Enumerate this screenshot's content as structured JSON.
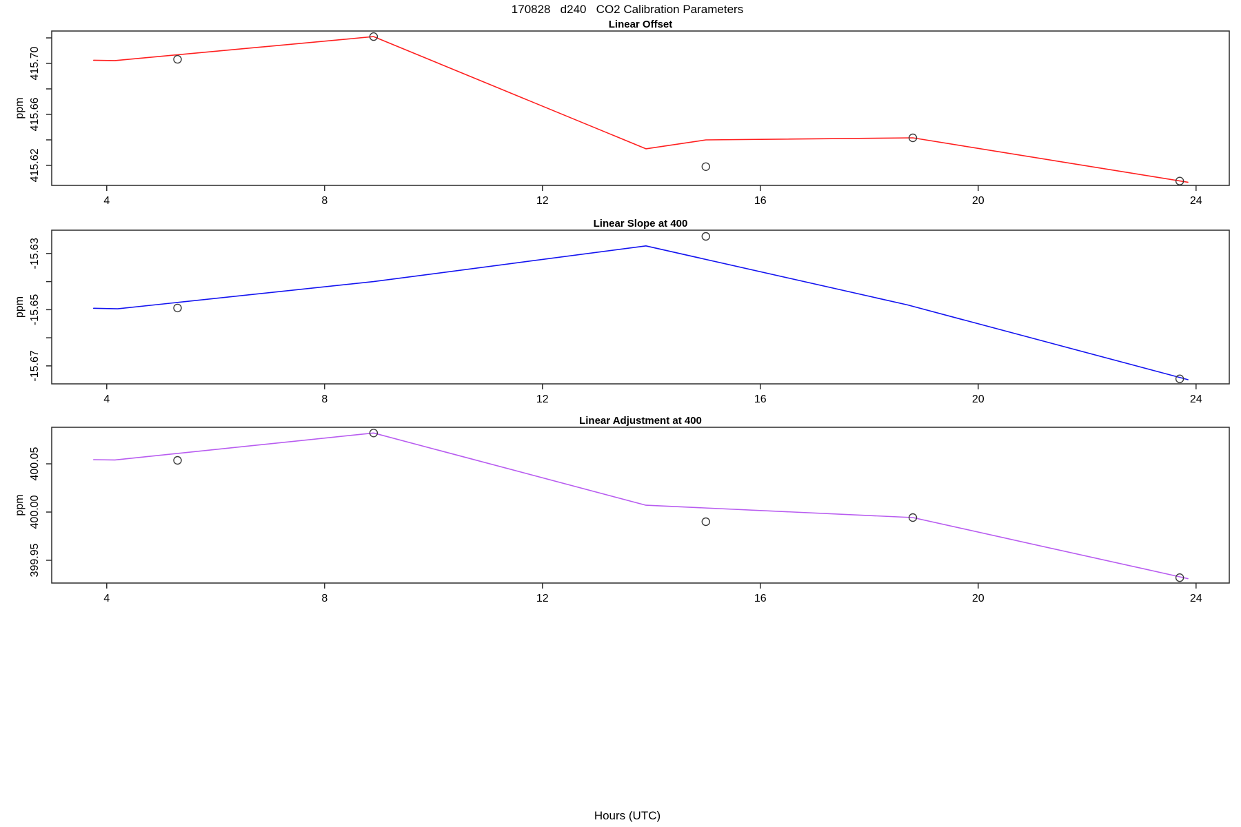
{
  "main_title": "170828   d240   CO2 Calibration Parameters",
  "xlabel": "Hours (UTC)",
  "axis_color": "#2b2b2b",
  "point_color": "#3a3a3a",
  "text_color": "#000000",
  "chart_data": [
    {
      "type": "line",
      "title": "Linear Offset",
      "ylabel": "ppm",
      "line_color": "#ff1f1f",
      "xlim": [
        2.99,
        24.61
      ],
      "ylim": [
        415.6043,
        415.7254
      ],
      "xticks": [
        4,
        8,
        12,
        16,
        20,
        24
      ],
      "yticks": [
        {
          "value": 415.62,
          "label": "415.62"
        },
        {
          "value": 415.64,
          "label": ""
        },
        {
          "value": 415.66,
          "label": "415.66"
        },
        {
          "value": 415.68,
          "label": ""
        },
        {
          "value": 415.7,
          "label": "415.70"
        },
        {
          "value": 415.72,
          "label": ""
        }
      ],
      "line": [
        [
          3.76,
          415.7025
        ],
        [
          4.15,
          415.7022
        ],
        [
          8.9,
          415.721
        ],
        [
          13.9,
          415.633
        ],
        [
          15.0,
          415.64
        ],
        [
          18.8,
          415.6416
        ],
        [
          23.85,
          415.6068
        ]
      ],
      "points": [
        [
          5.3,
          415.7032
        ],
        [
          8.9,
          415.721
        ],
        [
          15.0,
          415.619
        ],
        [
          18.8,
          415.6416
        ],
        [
          23.7,
          415.6077
        ]
      ]
    },
    {
      "type": "line",
      "title": "Linear Slope at 400",
      "ylabel": "ppm",
      "line_color": "#1414f0",
      "xlim": [
        2.99,
        24.61
      ],
      "ylim": [
        -15.6764,
        -15.6217
      ],
      "xticks": [
        4,
        8,
        12,
        16,
        20,
        24
      ],
      "yticks": [
        {
          "value": -15.67,
          "label": "-15.67"
        },
        {
          "value": -15.66,
          "label": ""
        },
        {
          "value": -15.65,
          "label": "-15.65"
        },
        {
          "value": -15.64,
          "label": ""
        },
        {
          "value": -15.63,
          "label": "-15.63"
        }
      ],
      "line": [
        [
          3.76,
          -15.6495
        ],
        [
          4.2,
          -15.6497
        ],
        [
          8.9,
          -15.64
        ],
        [
          13.9,
          -15.6273
        ],
        [
          18.7,
          -15.6483
        ],
        [
          23.85,
          -15.6749
        ]
      ],
      "points": [
        [
          5.3,
          -15.6494
        ],
        [
          15.0,
          -15.6239
        ],
        [
          23.7,
          -15.6746
        ]
      ]
    },
    {
      "type": "line",
      "title": "Linear Adjustment at 400",
      "ylabel": "ppm",
      "line_color": "#b85cf0",
      "xlim": [
        2.99,
        24.61
      ],
      "ylim": [
        399.9264,
        400.0879
      ],
      "xticks": [
        4,
        8,
        12,
        16,
        20,
        24
      ],
      "yticks": [
        {
          "value": 399.95,
          "label": "399.95"
        },
        {
          "value": 400.0,
          "label": "400.00"
        },
        {
          "value": 400.05,
          "label": "400.05"
        }
      ],
      "line": [
        [
          3.76,
          400.0543
        ],
        [
          4.15,
          400.054
        ],
        [
          8.9,
          400.082
        ],
        [
          13.9,
          400.0071
        ],
        [
          18.8,
          399.9943
        ],
        [
          23.85,
          399.931
        ]
      ],
      "points": [
        [
          5.3,
          400.0536
        ],
        [
          8.9,
          400.082
        ],
        [
          15.0,
          399.99
        ],
        [
          18.8,
          399.9943
        ],
        [
          23.7,
          399.932
        ]
      ]
    }
  ]
}
